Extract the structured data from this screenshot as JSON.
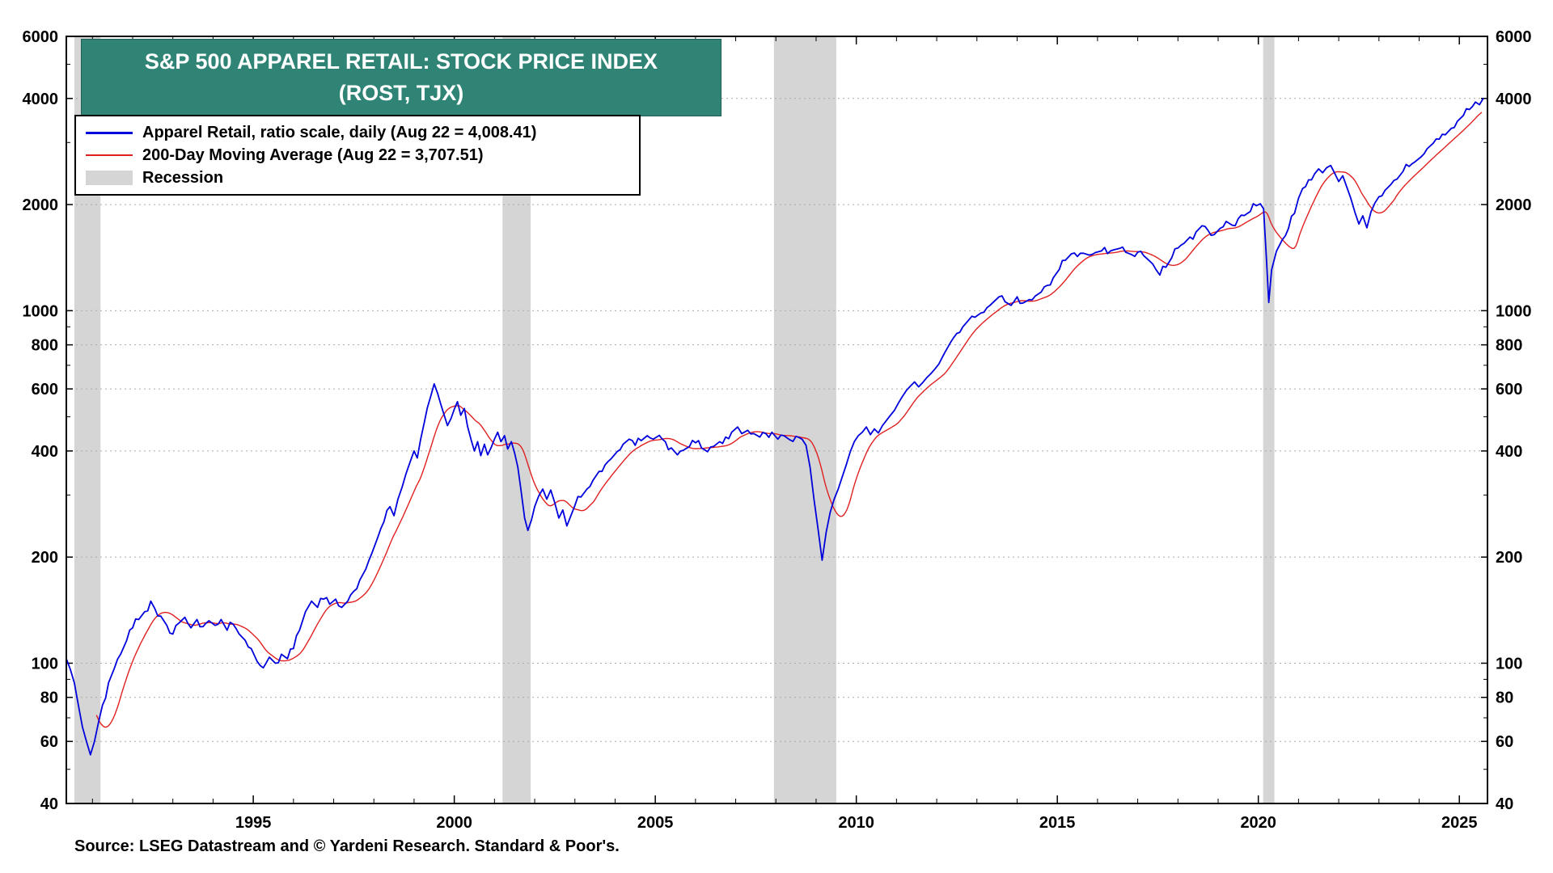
{
  "title": {
    "line1": "S&P 500 APPAREL RETAIL: STOCK PRICE INDEX",
    "line2": "(ROST, TJX)",
    "bg_color": "#2F8476"
  },
  "legend": {
    "items": [
      {
        "label": "Apparel Retail, ratio scale, daily (Aug 22 = 4,008.41)",
        "swatch": "line",
        "color": "#0000DD",
        "thickness": 3
      },
      {
        "label": "200-Day Moving Average (Aug 22 = 3,707.51)",
        "swatch": "line",
        "color": "#E02020",
        "thickness": 2
      },
      {
        "label": "Recession",
        "swatch": "box",
        "color": "#D5D5D5",
        "thickness": 18
      }
    ]
  },
  "source": "Source: LSEG Datastream and © Yardeni Research. Standard & Poor's.",
  "chart_data": {
    "type": "line",
    "title": "S&P 500 Apparel Retail: Stock Price Index (ROST, TJX)",
    "scale": "log",
    "x_range": [
      1990.35,
      2025.7
    ],
    "y_range": [
      40,
      6000
    ],
    "y_ticks": [
      40,
      60,
      80,
      100,
      200,
      400,
      600,
      800,
      1000,
      2000,
      4000,
      6000
    ],
    "y_minor_ticks": [
      50,
      70,
      90,
      300,
      500,
      700,
      900,
      3000,
      5000
    ],
    "x_ticks": [
      1995,
      2000,
      2005,
      2010,
      2015,
      2020,
      2025
    ],
    "x_minor_step": 1,
    "grid_color": "#AAAAAA",
    "recession_color": "#D5D5D5",
    "recessions": [
      [
        1990.55,
        1991.2
      ],
      [
        2001.2,
        2001.9
      ],
      [
        2007.95,
        2009.5
      ],
      [
        2020.12,
        2020.4
      ]
    ],
    "series": [
      {
        "name": "Apparel Retail, ratio scale, daily",
        "color": "#0000DD",
        "last_value": 4008.41,
        "points": [
          [
            1990.35,
            103
          ],
          [
            1990.45,
            96
          ],
          [
            1990.55,
            88
          ],
          [
            1990.65,
            76
          ],
          [
            1990.75,
            66
          ],
          [
            1990.85,
            60
          ],
          [
            1990.95,
            55
          ],
          [
            1991.05,
            60
          ],
          [
            1991.15,
            68
          ],
          [
            1991.25,
            76
          ],
          [
            1991.4,
            88
          ],
          [
            1991.55,
            97
          ],
          [
            1991.7,
            106
          ],
          [
            1991.85,
            116
          ],
          [
            1992.0,
            126
          ],
          [
            1992.15,
            133
          ],
          [
            1992.3,
            140
          ],
          [
            1992.45,
            150
          ],
          [
            1992.55,
            143
          ],
          [
            1992.7,
            136
          ],
          [
            1992.85,
            128
          ],
          [
            1993.0,
            121
          ],
          [
            1993.15,
            130
          ],
          [
            1993.3,
            135
          ],
          [
            1993.45,
            126
          ],
          [
            1993.6,
            133
          ],
          [
            1993.75,
            127
          ],
          [
            1993.9,
            132
          ],
          [
            1994.05,
            128
          ],
          [
            1994.2,
            133
          ],
          [
            1994.35,
            124
          ],
          [
            1994.5,
            129
          ],
          [
            1994.65,
            121
          ],
          [
            1994.8,
            116
          ],
          [
            1994.95,
            110
          ],
          [
            1995.1,
            101
          ],
          [
            1995.25,
            97
          ],
          [
            1995.4,
            104
          ],
          [
            1995.55,
            100
          ],
          [
            1995.7,
            106
          ],
          [
            1995.85,
            103
          ],
          [
            1996.0,
            110
          ],
          [
            1996.15,
            124
          ],
          [
            1996.3,
            140
          ],
          [
            1996.45,
            150
          ],
          [
            1996.6,
            144
          ],
          [
            1996.75,
            152
          ],
          [
            1996.9,
            147
          ],
          [
            1997.05,
            152
          ],
          [
            1997.2,
            144
          ],
          [
            1997.35,
            150
          ],
          [
            1997.5,
            160
          ],
          [
            1997.65,
            172
          ],
          [
            1997.8,
            185
          ],
          [
            1997.95,
            205
          ],
          [
            1998.1,
            228
          ],
          [
            1998.25,
            252
          ],
          [
            1998.4,
            278
          ],
          [
            1998.5,
            262
          ],
          [
            1998.6,
            292
          ],
          [
            1998.7,
            315
          ],
          [
            1998.8,
            345
          ],
          [
            1998.9,
            372
          ],
          [
            1999.0,
            400
          ],
          [
            1999.08,
            382
          ],
          [
            1999.16,
            430
          ],
          [
            1999.25,
            480
          ],
          [
            1999.33,
            530
          ],
          [
            1999.42,
            575
          ],
          [
            1999.5,
            620
          ],
          [
            1999.58,
            585
          ],
          [
            1999.66,
            545
          ],
          [
            1999.75,
            505
          ],
          [
            1999.83,
            472
          ],
          [
            1999.92,
            495
          ],
          [
            2000.0,
            525
          ],
          [
            2000.08,
            552
          ],
          [
            2000.16,
            505
          ],
          [
            2000.25,
            528
          ],
          [
            2000.33,
            470
          ],
          [
            2000.42,
            430
          ],
          [
            2000.5,
            400
          ],
          [
            2000.58,
            425
          ],
          [
            2000.66,
            388
          ],
          [
            2000.75,
            418
          ],
          [
            2000.83,
            390
          ],
          [
            2000.92,
            410
          ],
          [
            2001.0,
            432
          ],
          [
            2001.08,
            452
          ],
          [
            2001.16,
            425
          ],
          [
            2001.25,
            442
          ],
          [
            2001.33,
            405
          ],
          [
            2001.42,
            425
          ],
          [
            2001.5,
            395
          ],
          [
            2001.58,
            360
          ],
          [
            2001.66,
            310
          ],
          [
            2001.75,
            258
          ],
          [
            2001.83,
            238
          ],
          [
            2001.92,
            255
          ],
          [
            2002.0,
            278
          ],
          [
            2002.1,
            298
          ],
          [
            2002.2,
            312
          ],
          [
            2002.3,
            292
          ],
          [
            2002.4,
            310
          ],
          [
            2002.5,
            285
          ],
          [
            2002.6,
            258
          ],
          [
            2002.7,
            272
          ],
          [
            2002.8,
            245
          ],
          [
            2002.9,
            262
          ],
          [
            2003.0,
            280
          ],
          [
            2003.15,
            296
          ],
          [
            2003.3,
            312
          ],
          [
            2003.45,
            330
          ],
          [
            2003.6,
            350
          ],
          [
            2003.75,
            365
          ],
          [
            2003.9,
            380
          ],
          [
            2004.05,
            398
          ],
          [
            2004.2,
            418
          ],
          [
            2004.35,
            432
          ],
          [
            2004.5,
            415
          ],
          [
            2004.65,
            428
          ],
          [
            2004.8,
            442
          ],
          [
            2004.95,
            432
          ],
          [
            2005.1,
            443
          ],
          [
            2005.25,
            425
          ],
          [
            2005.4,
            408
          ],
          [
            2005.55,
            390
          ],
          [
            2005.7,
            402
          ],
          [
            2005.85,
            412
          ],
          [
            2006.0,
            422
          ],
          [
            2006.15,
            408
          ],
          [
            2006.3,
            398
          ],
          [
            2006.45,
            412
          ],
          [
            2006.6,
            425
          ],
          [
            2006.75,
            438
          ],
          [
            2006.9,
            452
          ],
          [
            2007.05,
            468
          ],
          [
            2007.15,
            448
          ],
          [
            2007.3,
            458
          ],
          [
            2007.45,
            448
          ],
          [
            2007.6,
            438
          ],
          [
            2007.75,
            448
          ],
          [
            2007.9,
            452
          ],
          [
            2008.05,
            432
          ],
          [
            2008.2,
            442
          ],
          [
            2008.35,
            430
          ],
          [
            2008.5,
            440
          ],
          [
            2008.65,
            432
          ],
          [
            2008.75,
            415
          ],
          [
            2008.85,
            360
          ],
          [
            2008.95,
            290
          ],
          [
            2009.05,
            240
          ],
          [
            2009.15,
            196
          ],
          [
            2009.25,
            235
          ],
          [
            2009.35,
            268
          ],
          [
            2009.45,
            292
          ],
          [
            2009.55,
            312
          ],
          [
            2009.65,
            338
          ],
          [
            2009.75,
            365
          ],
          [
            2009.85,
            398
          ],
          [
            2009.95,
            425
          ],
          [
            2010.05,
            442
          ],
          [
            2010.15,
            452
          ],
          [
            2010.25,
            468
          ],
          [
            2010.35,
            445
          ],
          [
            2010.45,
            462
          ],
          [
            2010.55,
            450
          ],
          [
            2010.65,
            472
          ],
          [
            2010.75,
            488
          ],
          [
            2010.85,
            505
          ],
          [
            2010.95,
            522
          ],
          [
            2011.05,
            548
          ],
          [
            2011.15,
            572
          ],
          [
            2011.25,
            595
          ],
          [
            2011.35,
            612
          ],
          [
            2011.45,
            628
          ],
          [
            2011.55,
            608
          ],
          [
            2011.65,
            625
          ],
          [
            2011.75,
            645
          ],
          [
            2011.85,
            662
          ],
          [
            2011.95,
            682
          ],
          [
            2012.05,
            705
          ],
          [
            2012.2,
            760
          ],
          [
            2012.35,
            815
          ],
          [
            2012.5,
            862
          ],
          [
            2012.65,
            900
          ],
          [
            2012.8,
            942
          ],
          [
            2012.95,
            958
          ],
          [
            2013.1,
            985
          ],
          [
            2013.25,
            1020
          ],
          [
            2013.4,
            1055
          ],
          [
            2013.55,
            1095
          ],
          [
            2013.7,
            1060
          ],
          [
            2013.85,
            1035
          ],
          [
            2014.0,
            1095
          ],
          [
            2014.15,
            1052
          ],
          [
            2014.3,
            1075
          ],
          [
            2014.45,
            1100
          ],
          [
            2014.6,
            1130
          ],
          [
            2014.75,
            1180
          ],
          [
            2014.9,
            1240
          ],
          [
            2015.05,
            1310
          ],
          [
            2015.2,
            1390
          ],
          [
            2015.35,
            1450
          ],
          [
            2015.5,
            1425
          ],
          [
            2015.65,
            1455
          ],
          [
            2015.8,
            1438
          ],
          [
            2015.95,
            1462
          ],
          [
            2016.1,
            1478
          ],
          [
            2016.25,
            1452
          ],
          [
            2016.4,
            1488
          ],
          [
            2016.55,
            1502
          ],
          [
            2016.7,
            1465
          ],
          [
            2016.85,
            1442
          ],
          [
            2017.0,
            1465
          ],
          [
            2017.15,
            1432
          ],
          [
            2017.3,
            1382
          ],
          [
            2017.45,
            1310
          ],
          [
            2017.55,
            1262
          ],
          [
            2017.7,
            1328
          ],
          [
            2017.85,
            1415
          ],
          [
            2018.0,
            1505
          ],
          [
            2018.15,
            1552
          ],
          [
            2018.3,
            1618
          ],
          [
            2018.45,
            1672
          ],
          [
            2018.6,
            1742
          ],
          [
            2018.75,
            1688
          ],
          [
            2018.9,
            1642
          ],
          [
            2019.05,
            1712
          ],
          [
            2019.2,
            1792
          ],
          [
            2019.35,
            1748
          ],
          [
            2019.5,
            1822
          ],
          [
            2019.65,
            1862
          ],
          [
            2019.8,
            1912
          ],
          [
            2019.95,
            1985
          ],
          [
            2020.05,
            2010
          ],
          [
            2020.13,
            1945
          ],
          [
            2020.2,
            1420
          ],
          [
            2020.26,
            1055
          ],
          [
            2020.33,
            1305
          ],
          [
            2020.45,
            1475
          ],
          [
            2020.6,
            1592
          ],
          [
            2020.75,
            1712
          ],
          [
            2020.9,
            1888
          ],
          [
            2021.0,
            2085
          ],
          [
            2021.1,
            2220
          ],
          [
            2021.25,
            2350
          ],
          [
            2021.4,
            2445
          ],
          [
            2021.5,
            2525
          ],
          [
            2021.6,
            2462
          ],
          [
            2021.7,
            2545
          ],
          [
            2021.8,
            2582
          ],
          [
            2021.9,
            2455
          ],
          [
            2022.0,
            2325
          ],
          [
            2022.1,
            2415
          ],
          [
            2022.2,
            2245
          ],
          [
            2022.3,
            2085
          ],
          [
            2022.4,
            1905
          ],
          [
            2022.5,
            1762
          ],
          [
            2022.6,
            1858
          ],
          [
            2022.7,
            1718
          ],
          [
            2022.8,
            1905
          ],
          [
            2022.9,
            2020
          ],
          [
            2023.0,
            2105
          ],
          [
            2023.15,
            2195
          ],
          [
            2023.3,
            2282
          ],
          [
            2023.45,
            2362
          ],
          [
            2023.6,
            2485
          ],
          [
            2023.75,
            2565
          ],
          [
            2023.9,
            2645
          ],
          [
            2024.05,
            2732
          ],
          [
            2024.2,
            2880
          ],
          [
            2024.35,
            2985
          ],
          [
            2024.5,
            3065
          ],
          [
            2024.65,
            3155
          ],
          [
            2024.8,
            3290
          ],
          [
            2024.95,
            3445
          ],
          [
            2025.1,
            3580
          ],
          [
            2025.25,
            3720
          ],
          [
            2025.4,
            3905
          ],
          [
            2025.5,
            3840
          ],
          [
            2025.6,
            4008.41
          ]
        ]
      }
    ],
    "moving_average": {
      "name": "200-Day Moving Average",
      "color": "#E02020",
      "window_years": 0.7,
      "last_value": 3707.51
    }
  }
}
